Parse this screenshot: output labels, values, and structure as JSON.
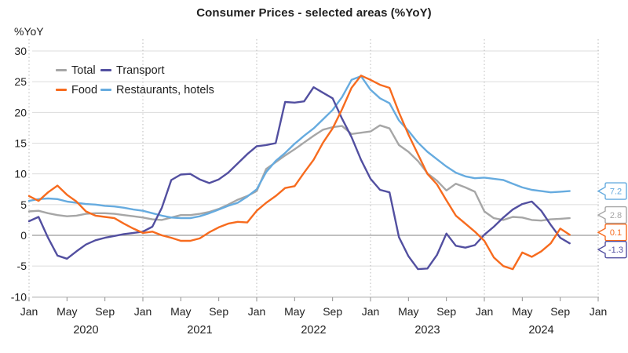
{
  "title": "Consumer Prices - selected areas (%YoY)",
  "y_axis": {
    "unit": "%YoY",
    "ticks": [
      30,
      25,
      20,
      15,
      10,
      5,
      0,
      -5,
      -10
    ]
  },
  "x_axis": {
    "ticks": [
      {
        "m": 0,
        "label": "Jan"
      },
      {
        "m": 4,
        "label": "May"
      },
      {
        "m": 8,
        "label": "Sep"
      },
      {
        "m": 12,
        "label": "Jan"
      },
      {
        "m": 16,
        "label": "May"
      },
      {
        "m": 20,
        "label": "Sep"
      },
      {
        "m": 24,
        "label": "Jan"
      },
      {
        "m": 28,
        "label": "May"
      },
      {
        "m": 32,
        "label": "Sep"
      },
      {
        "m": 36,
        "label": "Jan"
      },
      {
        "m": 40,
        "label": "May"
      },
      {
        "m": 44,
        "label": "Sep"
      },
      {
        "m": 48,
        "label": "Jan"
      },
      {
        "m": 52,
        "label": "May"
      },
      {
        "m": 56,
        "label": "Sep"
      },
      {
        "m": 60,
        "label": "Jan"
      }
    ],
    "year_labels": [
      {
        "m": 6,
        "label": "2020"
      },
      {
        "m": 18,
        "label": "2021"
      },
      {
        "m": 30,
        "label": "2022"
      },
      {
        "m": 42,
        "label": "2023"
      },
      {
        "m": 54,
        "label": "2024"
      }
    ],
    "jan_gridline_months": [
      0,
      12,
      24,
      36,
      48,
      60
    ]
  },
  "legend": [
    {
      "label": "Total",
      "color": "#a6a6a6"
    },
    {
      "label": "Transport",
      "color": "#524fa0"
    },
    {
      "label": "Food",
      "color": "#f76b1e"
    },
    {
      "label": "Restaurants, hotels",
      "color": "#66abdf"
    }
  ],
  "end_labels": [
    {
      "series": "restaurants_hotels",
      "value": "7.2",
      "color": "#66abdf"
    },
    {
      "series": "total",
      "value": "2.8",
      "color": "#a6a6a6"
    },
    {
      "series": "food",
      "value": "0.1",
      "color": "#f76b1e"
    },
    {
      "series": "transport",
      "value": "-1.3",
      "color": "#524fa0"
    }
  ],
  "chart_data": {
    "type": "line",
    "title": "Consumer Prices - selected areas (%YoY)",
    "ylabel": "%YoY",
    "ylim": [
      -10,
      30
    ],
    "grid": true,
    "legend_position": "top-left-inside",
    "x_frequency": "monthly",
    "months": [
      "2020-01",
      "2020-02",
      "2020-03",
      "2020-04",
      "2020-05",
      "2020-06",
      "2020-07",
      "2020-08",
      "2020-09",
      "2020-10",
      "2020-11",
      "2020-12",
      "2021-01",
      "2021-02",
      "2021-03",
      "2021-04",
      "2021-05",
      "2021-06",
      "2021-07",
      "2021-08",
      "2021-09",
      "2021-10",
      "2021-11",
      "2021-12",
      "2022-01",
      "2022-02",
      "2022-03",
      "2022-04",
      "2022-05",
      "2022-06",
      "2022-07",
      "2022-08",
      "2022-09",
      "2022-10",
      "2022-11",
      "2022-12",
      "2023-01",
      "2023-02",
      "2023-03",
      "2023-04",
      "2023-05",
      "2023-06",
      "2023-07",
      "2023-08",
      "2023-09",
      "2023-10",
      "2023-11",
      "2023-12",
      "2024-01",
      "2024-02",
      "2024-03",
      "2024-04",
      "2024-05",
      "2024-06",
      "2024-07",
      "2024-08",
      "2024-09",
      "2024-10"
    ],
    "series": [
      {
        "name": "total",
        "label": "Total",
        "color": "#a6a6a6",
        "values": [
          3.9,
          4.0,
          3.6,
          3.3,
          3.1,
          3.2,
          3.5,
          3.6,
          3.6,
          3.5,
          3.3,
          3.1,
          2.9,
          2.6,
          2.5,
          2.9,
          3.3,
          3.3,
          3.5,
          3.8,
          4.3,
          5.0,
          5.8,
          6.4,
          7.2,
          10.8,
          11.9,
          13.0,
          14.0,
          15.1,
          16.2,
          17.2,
          17.6,
          17.8,
          16.5,
          16.7,
          16.9,
          17.9,
          17.4,
          14.7,
          13.6,
          12.1,
          10.1,
          8.9,
          7.3,
          8.4,
          7.8,
          7.1,
          3.9,
          2.8,
          2.5,
          3.0,
          2.9,
          2.5,
          2.4,
          2.6,
          2.7,
          2.8
        ]
      },
      {
        "name": "transport",
        "label": "Transport",
        "color": "#524fa0",
        "values": [
          2.3,
          3.0,
          -0.4,
          -3.3,
          -3.8,
          -2.6,
          -1.5,
          -0.8,
          -0.4,
          -0.1,
          0.2,
          0.4,
          0.6,
          1.4,
          4.5,
          9.0,
          9.9,
          10.0,
          9.1,
          8.5,
          9.1,
          10.2,
          11.7,
          13.2,
          14.5,
          14.7,
          15.0,
          21.7,
          21.6,
          21.8,
          24.1,
          23.2,
          22.3,
          19.0,
          16.0,
          12.3,
          9.2,
          7.4,
          7.0,
          -0.3,
          -3.4,
          -5.5,
          -5.4,
          -3.2,
          0.3,
          -1.7,
          -2.0,
          -1.6,
          0.1,
          1.4,
          2.9,
          4.2,
          5.1,
          5.5,
          4.0,
          1.7,
          -0.4,
          -1.3
        ]
      },
      {
        "name": "food",
        "label": "Food",
        "color": "#f76b1e",
        "values": [
          6.4,
          5.6,
          7.0,
          8.1,
          6.6,
          5.5,
          3.9,
          3.2,
          3.0,
          2.8,
          1.9,
          1.1,
          0.4,
          0.6,
          0.0,
          -0.4,
          -0.9,
          -0.9,
          -0.5,
          0.5,
          1.3,
          1.9,
          2.2,
          2.1,
          4.0,
          5.3,
          6.4,
          7.7,
          8.0,
          10.2,
          12.3,
          15.1,
          17.4,
          20.5,
          24.0,
          26.0,
          25.3,
          24.5,
          24.0,
          20.0,
          16.4,
          13.2,
          10.0,
          8.3,
          5.7,
          3.2,
          1.9,
          0.6,
          -0.9,
          -3.6,
          -5.0,
          -5.5,
          -2.8,
          -3.5,
          -2.6,
          -1.3,
          1.1,
          0.1
        ]
      },
      {
        "name": "restaurants_hotels",
        "label": "Restaurants, hotels",
        "color": "#66abdf",
        "values": [
          5.6,
          5.9,
          6.0,
          5.9,
          5.5,
          5.3,
          5.1,
          5.0,
          4.8,
          4.7,
          4.5,
          4.2,
          4.0,
          3.6,
          3.2,
          2.9,
          2.8,
          2.8,
          3.1,
          3.6,
          4.2,
          4.8,
          5.3,
          6.3,
          7.5,
          10.3,
          12.1,
          13.4,
          14.9,
          16.2,
          17.4,
          18.9,
          20.4,
          22.5,
          25.3,
          25.9,
          23.7,
          22.3,
          21.5,
          18.7,
          17.0,
          15.1,
          13.6,
          12.4,
          11.2,
          10.2,
          9.6,
          9.3,
          9.4,
          9.2,
          9.0,
          8.4,
          7.8,
          7.4,
          7.2,
          7.0,
          7.1,
          7.2
        ]
      }
    ]
  }
}
